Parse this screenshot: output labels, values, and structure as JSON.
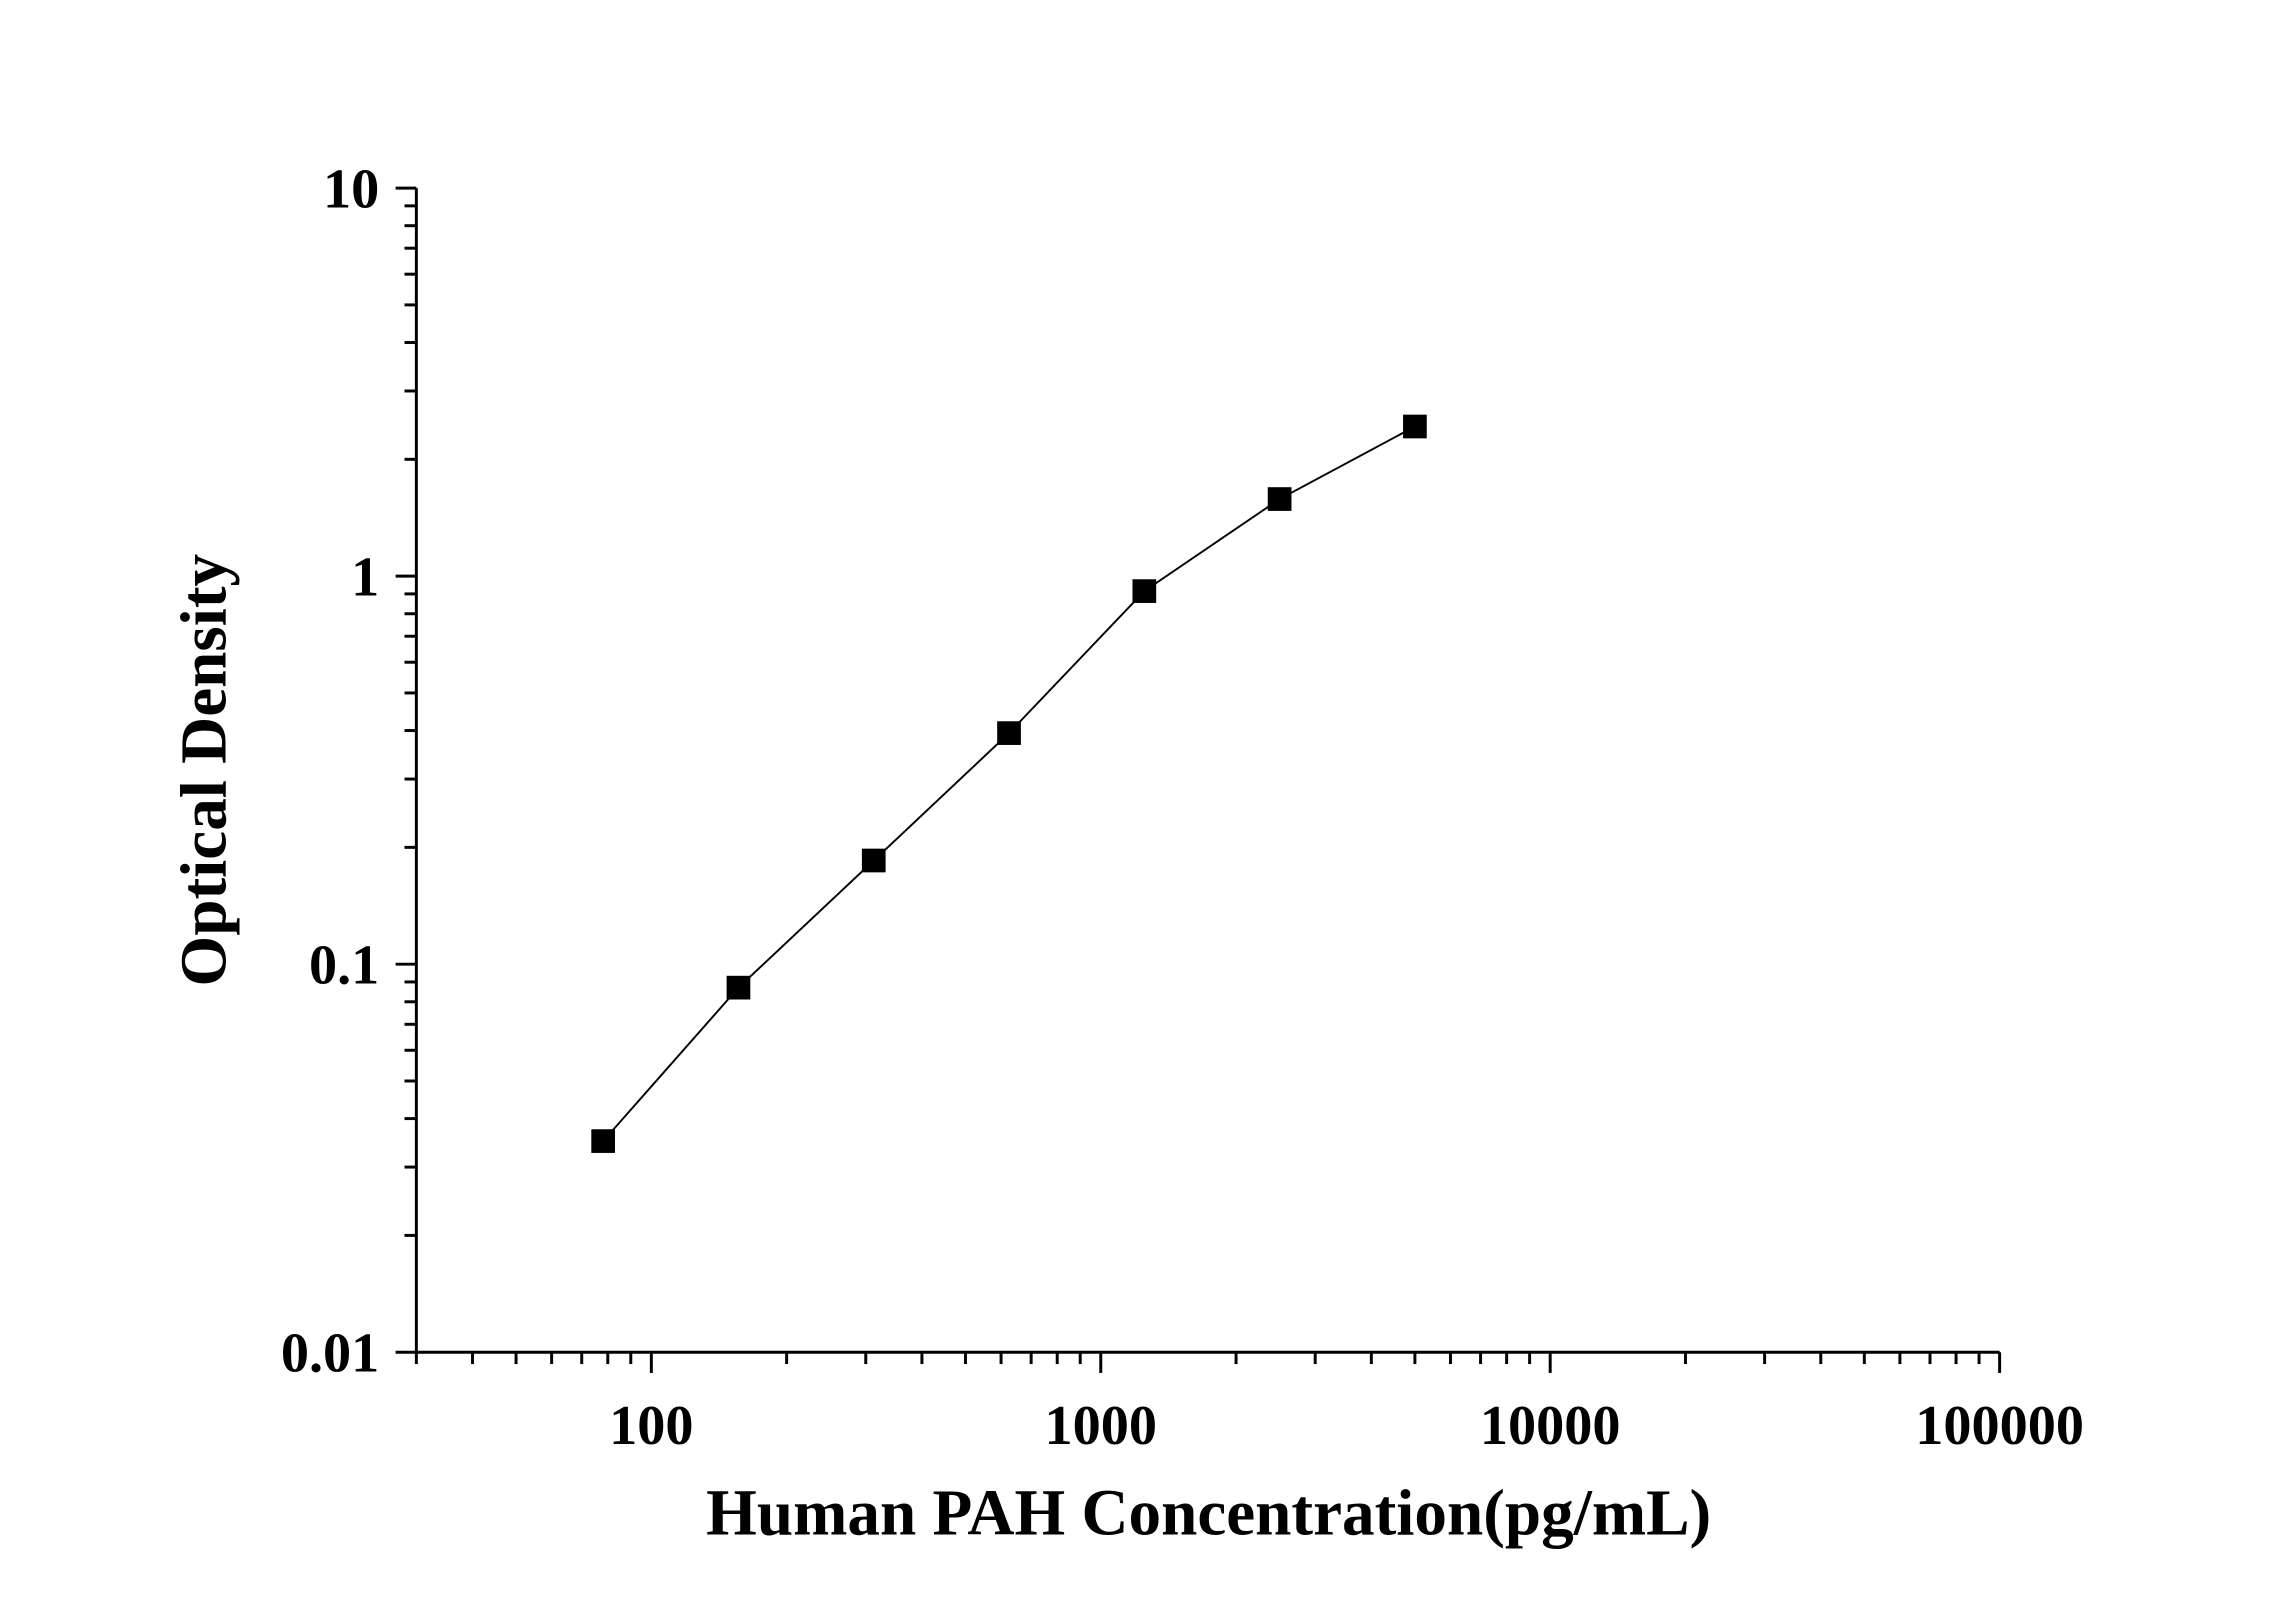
{
  "chart_data": {
    "type": "scatter",
    "title": "",
    "xlabel": "Human PAH Concentration(pg/mL)",
    "ylabel": "Optical Density",
    "x_scale": "log",
    "y_scale": "log",
    "xlim": [
      30,
      100000
    ],
    "ylim": [
      0.01,
      10
    ],
    "x_ticks": [
      100,
      1000,
      10000,
      100000
    ],
    "x_tick_labels": [
      "100",
      "1000",
      "10000",
      "100000"
    ],
    "y_ticks": [
      0.01,
      0.1,
      1,
      10
    ],
    "y_tick_labels": [
      "0.01",
      "0.1",
      "1",
      "10"
    ],
    "grid": false,
    "marker": "square",
    "connected": true,
    "color": "#000000",
    "series": [
      {
        "x": [
          78.125,
          156.25,
          312.5,
          625,
          1250,
          2500,
          5000
        ],
        "y": [
          0.035,
          0.087,
          0.185,
          0.394,
          0.915,
          1.58,
          2.43
        ]
      }
    ]
  }
}
